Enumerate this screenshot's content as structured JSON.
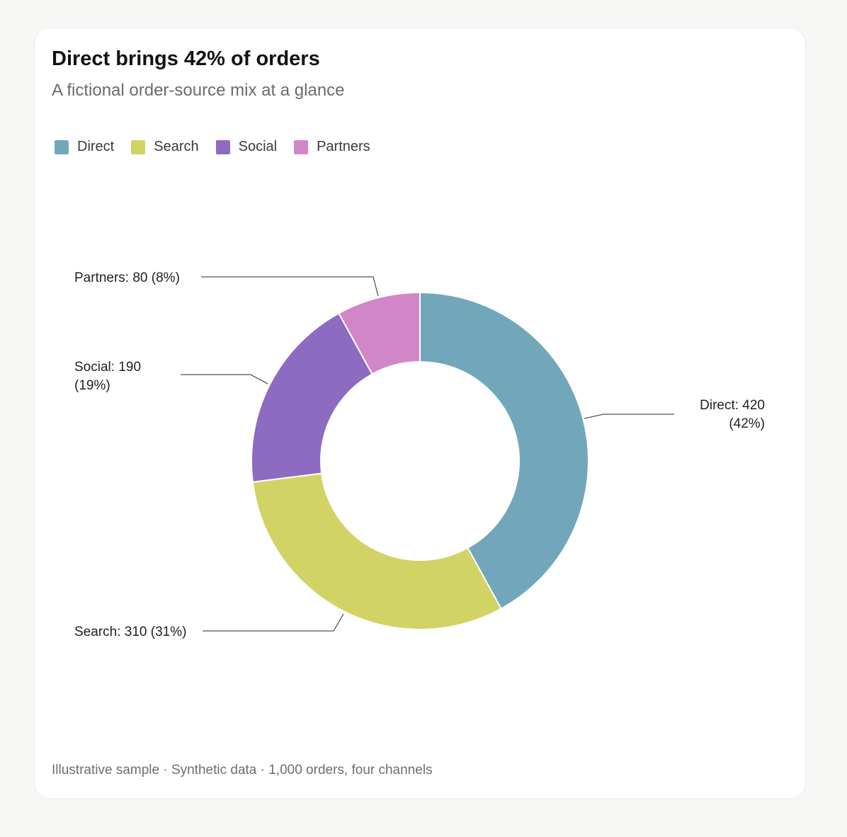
{
  "header": {
    "title": "Direct brings 42% of orders",
    "subtitle": "A fictional order-source mix at a glance"
  },
  "footer": {
    "note": "Illustrative sample · Synthetic data · 1,000 orders, four channels"
  },
  "chart_data": {
    "type": "pie",
    "donut": true,
    "title": "Direct brings 42% of orders",
    "subtitle": "A fictional order-source mix at a glance",
    "legend_placement": "top-left",
    "categories": [
      "Direct",
      "Search",
      "Social",
      "Partners"
    ],
    "values": [
      420,
      310,
      190,
      80
    ],
    "percents": [
      42,
      31,
      19,
      8
    ],
    "colors": [
      "#72a7bb",
      "#d1d365",
      "#8c6bc1",
      "#d187c7"
    ],
    "labels": [
      {
        "lines": [
          "Direct: 420",
          "(42%)"
        ]
      },
      {
        "lines": [
          "Search: 310 (31%)"
        ]
      },
      {
        "lines": [
          "Social: 190",
          "(19%)"
        ]
      },
      {
        "lines": [
          "Partners: 80 (8%)"
        ]
      }
    ]
  }
}
